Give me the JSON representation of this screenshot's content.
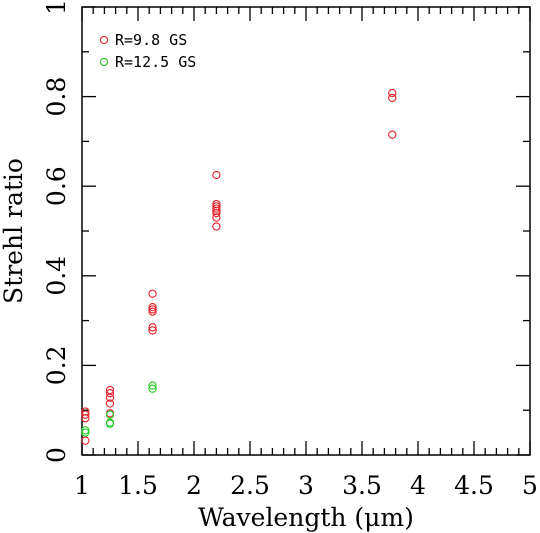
{
  "chart_data": {
    "type": "scatter",
    "xlabel": "Wavelength (μm)",
    "ylabel": "Strehl ratio",
    "xlim": [
      1,
      5
    ],
    "ylim": [
      0,
      1
    ],
    "x_major_ticks": [
      1,
      1.5,
      2,
      2.5,
      3,
      3.5,
      4,
      4.5,
      5
    ],
    "x_tick_labels": [
      "1",
      "1.5",
      "2",
      "2.5",
      "3",
      "3.5",
      "4",
      "4.5",
      "5"
    ],
    "y_major_ticks": [
      0,
      0.2,
      0.4,
      0.6,
      0.8,
      1
    ],
    "y_tick_labels": [
      "0",
      "0.2",
      "0.4",
      "0.6",
      "0.8",
      "1"
    ],
    "grid": false,
    "legend_position": "top-left",
    "series": [
      {
        "name": "R=9.8 GS",
        "color": "#e8212b",
        "points": [
          [
            1.03,
            0.097
          ],
          [
            1.03,
            0.09
          ],
          [
            1.03,
            0.082
          ],
          [
            1.03,
            0.032
          ],
          [
            1.25,
            0.145
          ],
          [
            1.25,
            0.138
          ],
          [
            1.25,
            0.128
          ],
          [
            1.25,
            0.115
          ],
          [
            1.25,
            0.093
          ],
          [
            1.63,
            0.36
          ],
          [
            1.63,
            0.33
          ],
          [
            1.63,
            0.325
          ],
          [
            1.63,
            0.32
          ],
          [
            1.63,
            0.285
          ],
          [
            1.63,
            0.278
          ],
          [
            2.2,
            0.625
          ],
          [
            2.2,
            0.56
          ],
          [
            2.2,
            0.555
          ],
          [
            2.2,
            0.55
          ],
          [
            2.2,
            0.545
          ],
          [
            2.2,
            0.54
          ],
          [
            2.2,
            0.53
          ],
          [
            2.2,
            0.51
          ],
          [
            3.77,
            0.808
          ],
          [
            3.77,
            0.797
          ],
          [
            3.77,
            0.715
          ]
        ]
      },
      {
        "name": "R=12.5 GS",
        "color": "#22cc22",
        "points": [
          [
            1.03,
            0.055
          ],
          [
            1.03,
            0.05
          ],
          [
            1.25,
            0.09
          ],
          [
            1.25,
            0.072
          ],
          [
            1.25,
            0.07
          ],
          [
            1.63,
            0.155
          ],
          [
            1.63,
            0.148
          ]
        ]
      }
    ]
  }
}
